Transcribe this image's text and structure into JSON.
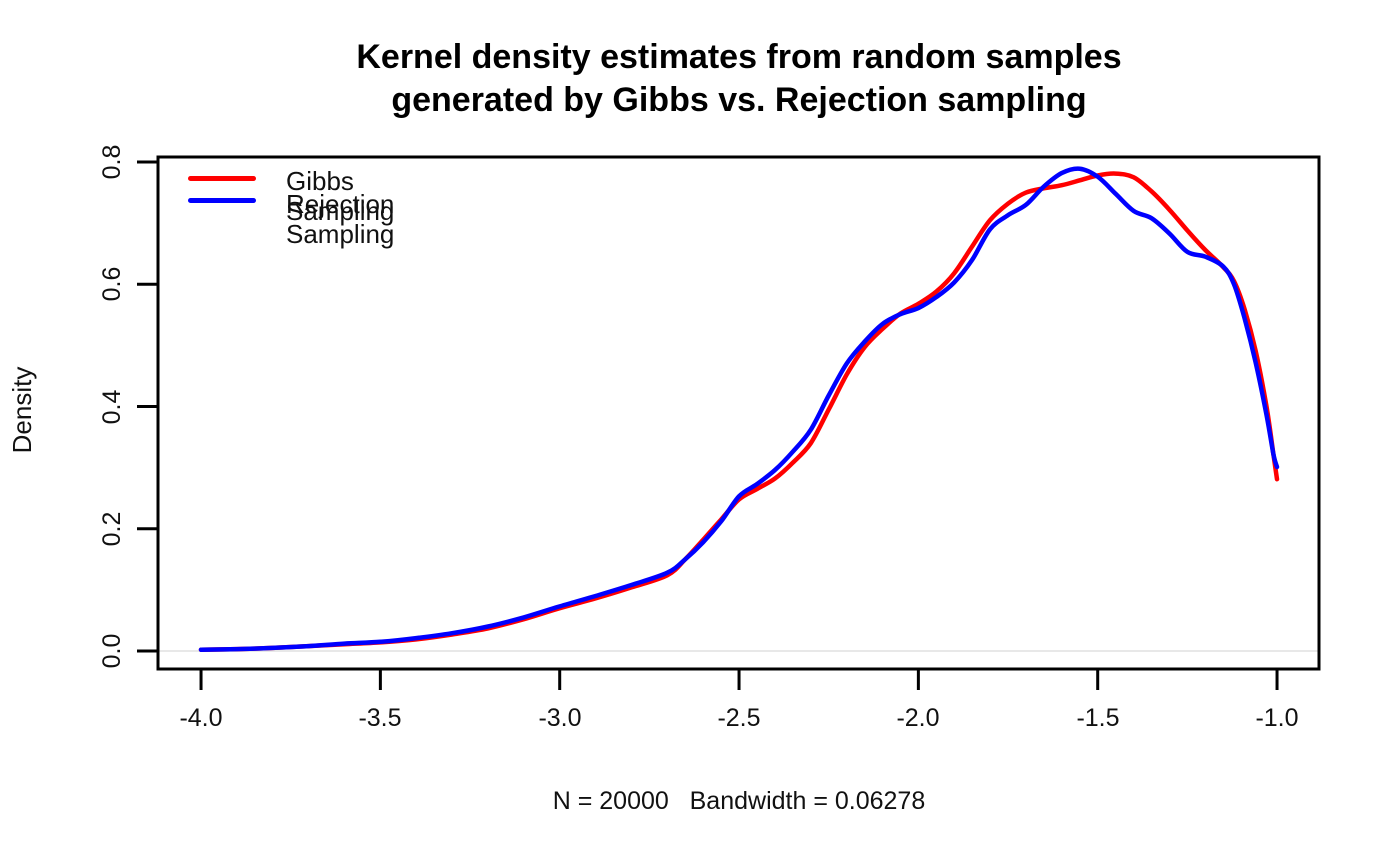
{
  "figure": {
    "title_line1": "Kernel density estimates from random samples",
    "title_line2": "generated by Gibbs vs. Rejection sampling",
    "x_axis_caption": "N = 20000   Bandwidth = 0.06278",
    "y_axis_title": "Density"
  },
  "legend": {
    "items": [
      {
        "label": "Gibbs Sampling",
        "color": "#ff0000"
      },
      {
        "label": "Rejection Sampling",
        "color": "#0000ff"
      }
    ],
    "position": "top-left",
    "border": "none"
  },
  "chart_data": {
    "type": "line",
    "title": "Kernel density estimates from random samples generated by Gibbs vs. Rejection sampling",
    "xlabel": "N = 20000   Bandwidth = 0.06278",
    "ylabel": "Density",
    "xlim": [
      -4.12,
      -0.883
    ],
    "ylim": [
      -0.0295,
      0.8082
    ],
    "x_ticks": [
      -4.0,
      -3.5,
      -3.0,
      -2.5,
      -2.0,
      -1.5,
      -1.0
    ],
    "x_tick_labels": [
      "-4.0",
      "-3.5",
      "-3.0",
      "-2.5",
      "-2.0",
      "-1.5",
      "-1.0"
    ],
    "y_ticks": [
      0.0,
      0.2,
      0.4,
      0.6,
      0.8
    ],
    "y_tick_labels": [
      "0.0",
      "0.2",
      "0.4",
      "0.6",
      "0.8"
    ],
    "grid": "off",
    "zero_baseline": {
      "y": 0.0,
      "color": "#e8e8e8"
    },
    "frame_color": "#000000",
    "series": [
      {
        "name": "Gibbs Sampling",
        "color": "#ff0000",
        "points": [
          [
            -4.0,
            0.002
          ],
          [
            -3.9,
            0.003
          ],
          [
            -3.8,
            0.005
          ],
          [
            -3.7,
            0.008
          ],
          [
            -3.6,
            0.011
          ],
          [
            -3.5,
            0.014
          ],
          [
            -3.4,
            0.019
          ],
          [
            -3.3,
            0.027
          ],
          [
            -3.2,
            0.037
          ],
          [
            -3.1,
            0.052
          ],
          [
            -3.0,
            0.07
          ],
          [
            -2.9,
            0.086
          ],
          [
            -2.8,
            0.104
          ],
          [
            -2.7,
            0.124
          ],
          [
            -2.65,
            0.15
          ],
          [
            -2.6,
            0.182
          ],
          [
            -2.55,
            0.215
          ],
          [
            -2.5,
            0.248
          ],
          [
            -2.45,
            0.265
          ],
          [
            -2.4,
            0.282
          ],
          [
            -2.35,
            0.308
          ],
          [
            -2.3,
            0.34
          ],
          [
            -2.25,
            0.395
          ],
          [
            -2.2,
            0.452
          ],
          [
            -2.15,
            0.497
          ],
          [
            -2.1,
            0.527
          ],
          [
            -2.05,
            0.552
          ],
          [
            -2.0,
            0.568
          ],
          [
            -1.95,
            0.588
          ],
          [
            -1.9,
            0.618
          ],
          [
            -1.85,
            0.662
          ],
          [
            -1.8,
            0.705
          ],
          [
            -1.75,
            0.732
          ],
          [
            -1.7,
            0.75
          ],
          [
            -1.65,
            0.757
          ],
          [
            -1.6,
            0.762
          ],
          [
            -1.55,
            0.77
          ],
          [
            -1.5,
            0.778
          ],
          [
            -1.45,
            0.781
          ],
          [
            -1.4,
            0.775
          ],
          [
            -1.35,
            0.752
          ],
          [
            -1.3,
            0.722
          ],
          [
            -1.25,
            0.688
          ],
          [
            -1.2,
            0.656
          ],
          [
            -1.15,
            0.628
          ],
          [
            -1.12,
            0.605
          ],
          [
            -1.09,
            0.558
          ],
          [
            -1.06,
            0.492
          ],
          [
            -1.03,
            0.402
          ],
          [
            -1.01,
            0.322
          ],
          [
            -1.0,
            0.281
          ]
        ]
      },
      {
        "name": "Rejection Sampling",
        "color": "#0000ff",
        "points": [
          [
            -4.0,
            0.002
          ],
          [
            -3.9,
            0.003
          ],
          [
            -3.8,
            0.005
          ],
          [
            -3.7,
            0.008
          ],
          [
            -3.6,
            0.012
          ],
          [
            -3.5,
            0.015
          ],
          [
            -3.4,
            0.021
          ],
          [
            -3.3,
            0.029
          ],
          [
            -3.2,
            0.04
          ],
          [
            -3.1,
            0.055
          ],
          [
            -3.0,
            0.073
          ],
          [
            -2.9,
            0.09
          ],
          [
            -2.8,
            0.108
          ],
          [
            -2.7,
            0.128
          ],
          [
            -2.65,
            0.15
          ],
          [
            -2.6,
            0.178
          ],
          [
            -2.55,
            0.212
          ],
          [
            -2.5,
            0.253
          ],
          [
            -2.45,
            0.273
          ],
          [
            -2.4,
            0.296
          ],
          [
            -2.35,
            0.326
          ],
          [
            -2.3,
            0.362
          ],
          [
            -2.25,
            0.418
          ],
          [
            -2.2,
            0.47
          ],
          [
            -2.15,
            0.506
          ],
          [
            -2.1,
            0.535
          ],
          [
            -2.05,
            0.551
          ],
          [
            -2.0,
            0.561
          ],
          [
            -1.95,
            0.579
          ],
          [
            -1.9,
            0.603
          ],
          [
            -1.85,
            0.64
          ],
          [
            -1.8,
            0.69
          ],
          [
            -1.75,
            0.713
          ],
          [
            -1.7,
            0.73
          ],
          [
            -1.65,
            0.76
          ],
          [
            -1.6,
            0.782
          ],
          [
            -1.55,
            0.789
          ],
          [
            -1.5,
            0.776
          ],
          [
            -1.45,
            0.748
          ],
          [
            -1.4,
            0.72
          ],
          [
            -1.35,
            0.708
          ],
          [
            -1.3,
            0.683
          ],
          [
            -1.25,
            0.653
          ],
          [
            -1.2,
            0.645
          ],
          [
            -1.15,
            0.629
          ],
          [
            -1.12,
            0.6
          ],
          [
            -1.09,
            0.543
          ],
          [
            -1.06,
            0.473
          ],
          [
            -1.03,
            0.388
          ],
          [
            -1.01,
            0.322
          ],
          [
            -1.0,
            0.301
          ]
        ]
      }
    ]
  }
}
